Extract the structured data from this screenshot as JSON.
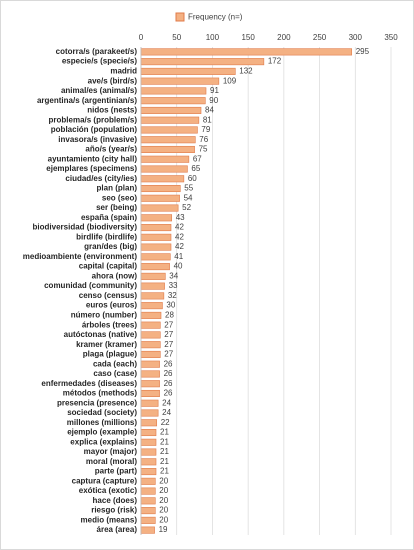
{
  "chart_data": {
    "type": "barh",
    "legend": "Frequency (n=)",
    "color": "#f4b183",
    "edgecolor": "#e07b4a",
    "categories": [
      "cotorra/s (parakeet/s)",
      "especie/s (specie/s)",
      "madrid",
      "ave/s (bird/s)",
      "animal/es (animal/s)",
      "argentina/s (argentinian/s)",
      "nidos (nests)",
      "problema/s (problem/s)",
      "población (population)",
      "invasora/s (invasive)",
      "año/s (year/s)",
      "ayuntamiento (city hall)",
      "ejemplares (specimens)",
      "ciudad/es (city/ies)",
      "plan (plan)",
      "seo (seo)",
      "ser (being)",
      "españa (spain)",
      "biodiversidad (biodiversity)",
      "birdlife (birdlife)",
      "gran/des (big)",
      "medioambiente (environment)",
      "capital (capital)",
      "ahora (now)",
      "comunidad (community)",
      "censo (census)",
      "euros (euros)",
      "número (number)",
      "árboles (trees)",
      "autóctonas (native)",
      "kramer (kramer)",
      "plaga (plague)",
      "cada (each)",
      "caso (case)",
      "enfermedades (diseases)",
      "métodos (methods)",
      "presencia (presence)",
      "sociedad (society)",
      "millones (millions)",
      "ejemplo (example)",
      "explica (explains)",
      "mayor (major)",
      "moral (moral)",
      "parte (part)",
      "captura (capture)",
      "exótica (exotic)",
      "hace (does)",
      "riesgo (risk)",
      "medio (means)",
      "área (area)"
    ],
    "values": [
      295,
      172,
      132,
      109,
      91,
      90,
      84,
      81,
      79,
      76,
      75,
      67,
      65,
      60,
      55,
      54,
      52,
      43,
      42,
      42,
      42,
      41,
      40,
      34,
      33,
      32,
      30,
      28,
      27,
      27,
      27,
      27,
      26,
      26,
      26,
      26,
      24,
      24,
      22,
      21,
      21,
      21,
      21,
      21,
      20,
      20,
      20,
      20,
      20,
      19
    ],
    "xlim": [
      0,
      350
    ],
    "xticks": [
      0,
      50,
      100,
      150,
      200,
      250,
      300,
      350
    ],
    "grid": true
  }
}
